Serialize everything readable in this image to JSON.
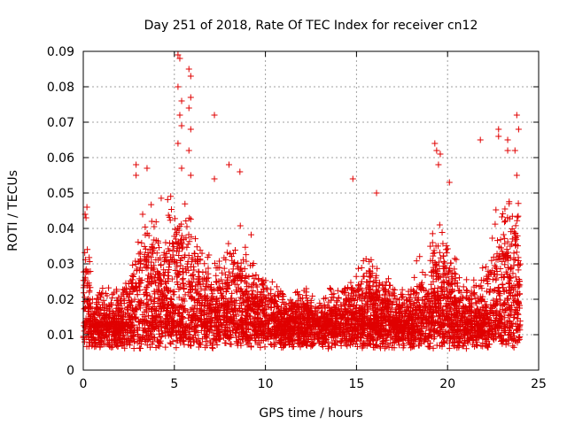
{
  "chart_data": {
    "type": "scatter",
    "title": "Day 251 of 2018, Rate Of TEC Index for receiver cn12",
    "xlabel": "GPS time / hours",
    "ylabel": "ROTI / TECUs",
    "xlim": [
      0,
      25
    ],
    "ylim": [
      0,
      0.09
    ],
    "xticks": [
      0,
      5,
      10,
      15,
      20,
      25
    ],
    "xtick_labels": [
      "0",
      "5",
      "10",
      "15",
      "20",
      "25"
    ],
    "yticks": [
      0,
      0.01,
      0.02,
      0.03,
      0.04,
      0.05,
      0.06,
      0.07,
      0.08,
      0.09
    ],
    "ytick_labels": [
      "0",
      "0.01",
      "0.02",
      "0.03",
      "0.04",
      "0.05",
      "0.06",
      "0.07",
      "0.08",
      "0.09"
    ],
    "grid": true,
    "marker": "plus",
    "series_color": "#e00000",
    "x_span_hours": [
      0,
      24
    ],
    "typical_band": [
      0.006,
      0.03
    ],
    "notable_points": [
      {
        "x": 5.2,
        "y": 0.089
      },
      {
        "x": 5.3,
        "y": 0.088
      },
      {
        "x": 5.2,
        "y": 0.08
      },
      {
        "x": 5.4,
        "y": 0.076
      },
      {
        "x": 5.3,
        "y": 0.072
      },
      {
        "x": 5.4,
        "y": 0.069
      },
      {
        "x": 5.8,
        "y": 0.085
      },
      {
        "x": 5.9,
        "y": 0.083
      },
      {
        "x": 5.9,
        "y": 0.077
      },
      {
        "x": 5.8,
        "y": 0.074
      },
      {
        "x": 5.9,
        "y": 0.068
      },
      {
        "x": 5.8,
        "y": 0.062
      },
      {
        "x": 5.9,
        "y": 0.055
      },
      {
        "x": 5.2,
        "y": 0.064
      },
      {
        "x": 5.4,
        "y": 0.057
      },
      {
        "x": 7.2,
        "y": 0.072
      },
      {
        "x": 7.2,
        "y": 0.054
      },
      {
        "x": 8.0,
        "y": 0.058
      },
      {
        "x": 8.6,
        "y": 0.056
      },
      {
        "x": 2.9,
        "y": 0.058
      },
      {
        "x": 3.5,
        "y": 0.057
      },
      {
        "x": 2.9,
        "y": 0.055
      },
      {
        "x": 14.8,
        "y": 0.054
      },
      {
        "x": 16.1,
        "y": 0.05
      },
      {
        "x": 19.3,
        "y": 0.064
      },
      {
        "x": 19.4,
        "y": 0.062
      },
      {
        "x": 19.6,
        "y": 0.061
      },
      {
        "x": 19.5,
        "y": 0.058
      },
      {
        "x": 20.1,
        "y": 0.053
      },
      {
        "x": 21.8,
        "y": 0.065
      },
      {
        "x": 22.8,
        "y": 0.068
      },
      {
        "x": 22.8,
        "y": 0.066
      },
      {
        "x": 23.3,
        "y": 0.065
      },
      {
        "x": 23.3,
        "y": 0.062
      },
      {
        "x": 23.8,
        "y": 0.072
      },
      {
        "x": 23.9,
        "y": 0.068
      },
      {
        "x": 23.7,
        "y": 0.062
      },
      {
        "x": 23.8,
        "y": 0.055
      },
      {
        "x": 0.1,
        "y": 0.044
      },
      {
        "x": 0.15,
        "y": 0.043
      },
      {
        "x": 0.2,
        "y": 0.046
      }
    ]
  }
}
